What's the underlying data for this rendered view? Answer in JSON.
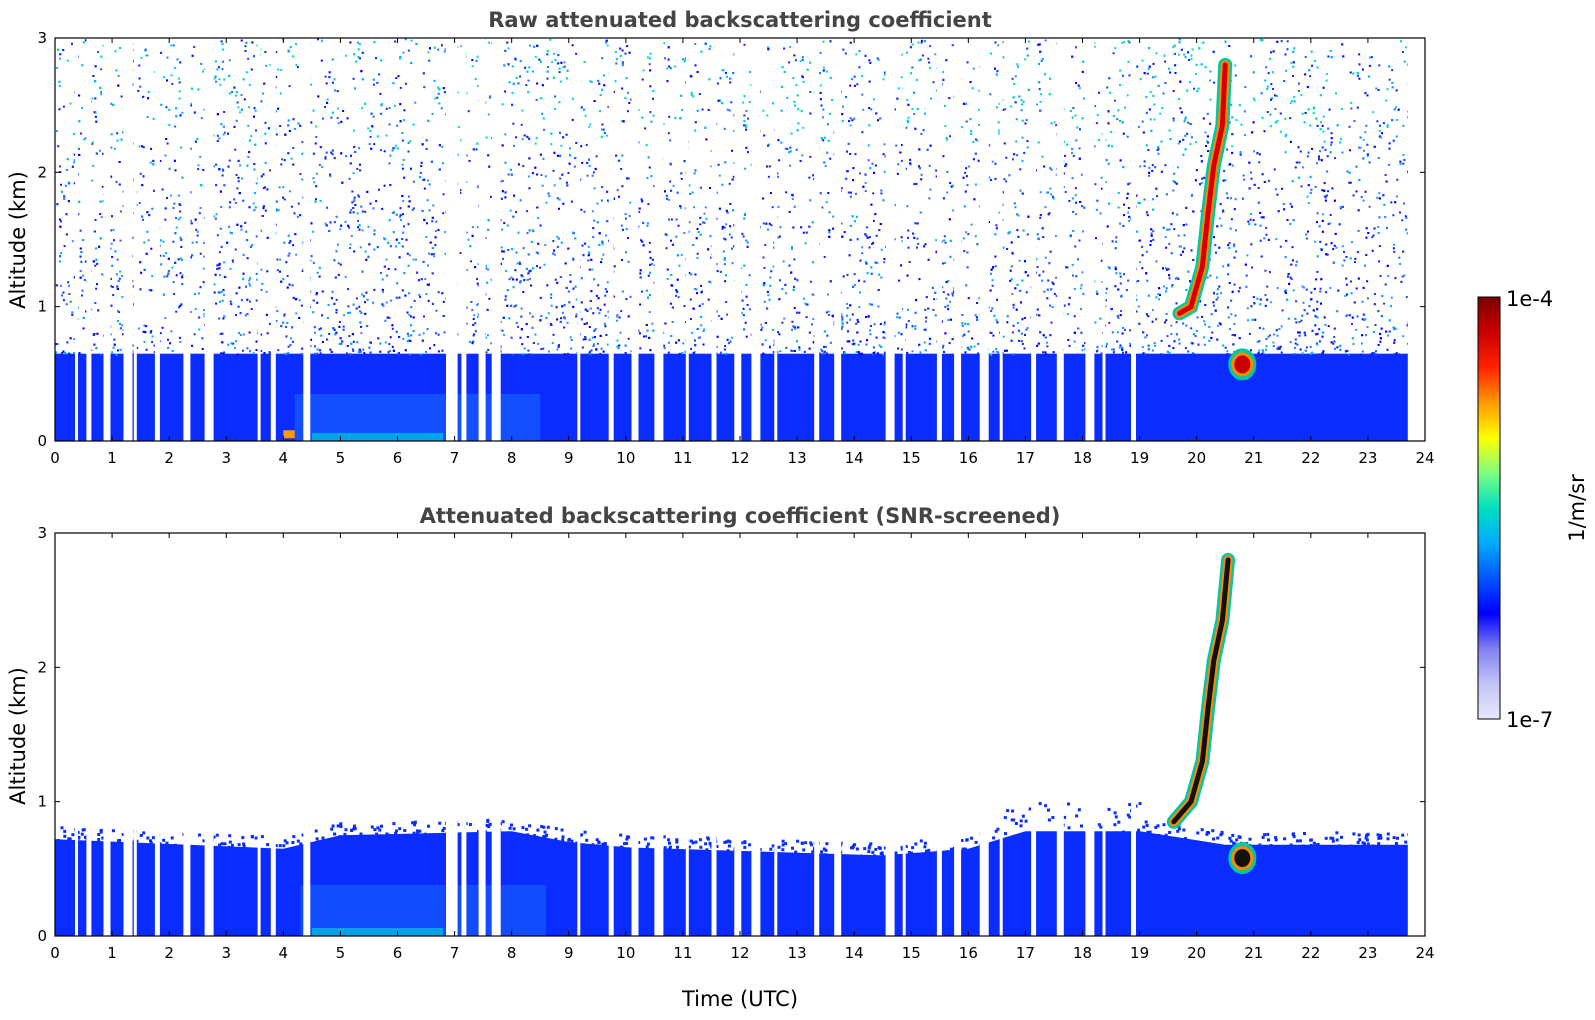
{
  "chart_data": [
    {
      "type": "heatmap",
      "title": "Raw attenuated backscattering coefficient",
      "ylabel": "Altitude (km)",
      "xlabel": "",
      "xlim": [
        0,
        24
      ],
      "ylim": [
        0,
        3
      ],
      "x_ticks": [
        0,
        1,
        2,
        3,
        4,
        5,
        6,
        7,
        8,
        9,
        10,
        11,
        12,
        13,
        14,
        15,
        16,
        17,
        18,
        19,
        20,
        21,
        22,
        23,
        24
      ],
      "y_ticks": [
        0,
        1,
        2,
        3
      ],
      "data_end_x": 23.7,
      "boundary_layer_top_km": 0.65,
      "noise_pattern": "dense speckle throughout the column, decreasing in density with altitude",
      "features": [
        {
          "name": "cloud/plume track",
          "points_time_alt": [
            [
              19.7,
              0.95
            ],
            [
              19.9,
              1.0
            ],
            [
              20.1,
              1.3
            ],
            [
              20.2,
              1.7
            ],
            [
              20.3,
              2.05
            ],
            [
              20.45,
              2.35
            ],
            [
              20.5,
              2.8
            ]
          ],
          "level": "high"
        },
        {
          "name": "cloud",
          "time": 20.8,
          "altitude_km": 0.57,
          "level": "high"
        },
        {
          "name": "surface layer",
          "time_range": [
            4.0,
            4.2
          ],
          "altitude_km": 0.03,
          "level": "medium"
        }
      ]
    },
    {
      "type": "heatmap",
      "title": "Attenuated backscattering coefficient (SNR-screened)",
      "ylabel": "Altitude (km)",
      "xlabel": "Time (UTC)",
      "xlim": [
        0,
        24
      ],
      "ylim": [
        0,
        3
      ],
      "x_ticks": [
        0,
        1,
        2,
        3,
        4,
        5,
        6,
        7,
        8,
        9,
        10,
        11,
        12,
        13,
        14,
        15,
        16,
        17,
        18,
        19,
        20,
        21,
        22,
        23,
        24
      ],
      "y_ticks": [
        0,
        1,
        2,
        3
      ],
      "data_end_x": 23.7,
      "boundary_layer_top_km": [
        [
          0,
          0.72
        ],
        [
          4,
          0.65
        ],
        [
          5,
          0.75
        ],
        [
          8,
          0.78
        ],
        [
          9,
          0.7
        ],
        [
          10,
          0.66
        ],
        [
          14.5,
          0.6
        ],
        [
          16,
          0.65
        ],
        [
          17,
          0.78
        ],
        [
          19,
          0.78
        ],
        [
          20.5,
          0.68
        ],
        [
          23.7,
          0.68
        ]
      ],
      "features": [
        {
          "name": "cloud/plume track",
          "points_time_alt": [
            [
              19.6,
              0.85
            ],
            [
              19.9,
              1.0
            ],
            [
              20.1,
              1.3
            ],
            [
              20.2,
              1.7
            ],
            [
              20.3,
              2.05
            ],
            [
              20.45,
              2.35
            ],
            [
              20.55,
              2.8
            ]
          ],
          "level": "saturated"
        },
        {
          "name": "cloud",
          "time": 20.8,
          "altitude_km": 0.58,
          "level": "saturated"
        }
      ]
    }
  ],
  "colorbar": {
    "label": "1/m/sr",
    "max_label": "1e-4",
    "min_label": "1e-7",
    "scale": "log",
    "colormap": [
      "#e8e8ff",
      "#c4c4f8",
      "#8080f0",
      "#0000ff",
      "#0055ff",
      "#00aaff",
      "#00e0c0",
      "#80ff80",
      "#ffff00",
      "#ff9900",
      "#ff2200",
      "#cc0000",
      "#7a0000"
    ]
  },
  "missing_data_gaps_hours": [
    0.35,
    0.55,
    0.85,
    1.2,
    1.38,
    1.75,
    2.25,
    2.62,
    3.55,
    3.78,
    4.35,
    6.85,
    7.0,
    7.12,
    7.42,
    7.65,
    9.15,
    9.7,
    10.1,
    10.5,
    11.05,
    11.5,
    11.9,
    12.2,
    12.6,
    13.3,
    13.65,
    14.55,
    14.85,
    15.45,
    15.75,
    16.2,
    16.55,
    17.1,
    17.55,
    18.05,
    18.35,
    18.85
  ]
}
